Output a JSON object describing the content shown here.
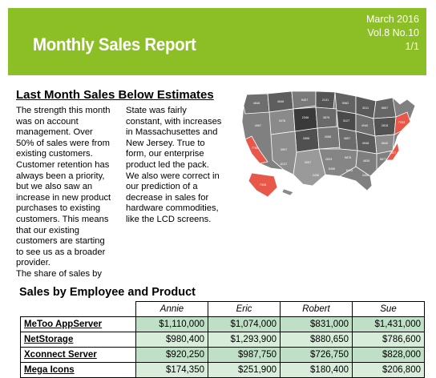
{
  "header": {
    "title": "Monthly Sales Report",
    "date": "March 2016",
    "volume": "Vol.8 No.10",
    "page": "1/1"
  },
  "article": {
    "title": "Last Month Sales Below Estimates",
    "col1_lines": [
      "The strength this month",
      "was on account",
      "management. Over",
      "50% of sales were from",
      "existing customers.",
      "Customer retention has",
      "always been a priority,",
      "but we also saw an",
      "increase in new product",
      "purchases to existing",
      "customers. This means",
      "that our existing",
      "customers are starting",
      "to see us as a broader",
      "provider."
    ],
    "col1_tail": "The share of sales by",
    "col2_lines": [
      "State was fairly",
      "constant, with increases",
      "in Massachusettes and",
      "New Jersey. True to",
      "form, our enterprise",
      "product led the pack.",
      "We also were correct in",
      "our prediction of a",
      "decrease in sales for",
      "hardware commodities,",
      "like the LCD screens."
    ]
  },
  "map": {
    "highlight_color": "#e8584a",
    "state_labels": [
      "4846",
      "4846",
      "5457",
      "2131",
      "5962",
      "3311",
      "5857",
      "3478",
      "2346",
      "3878",
      "3127",
      "4987",
      "4940",
      "2815",
      "2858",
      "4088",
      "7765",
      "3857",
      "7233",
      "3997",
      "4948",
      "5640",
      "3957",
      "7527",
      "2529",
      "5878",
      "4835",
      "6137",
      "5456",
      "6463",
      "7326",
      "3456",
      "8877",
      "2436"
    ]
  },
  "table": {
    "title": "Sales by Employee and Product",
    "columns": [
      "Annie",
      "Eric",
      "Robert",
      "Sue"
    ],
    "rows": [
      {
        "product": "MeToo AppServer",
        "values": [
          "$1,110,000",
          "$1,074,000",
          "$831,000",
          "$1,431,000"
        ]
      },
      {
        "product": "NetStorage",
        "values": [
          "$980,400",
          "$1,293,900",
          "$880,650",
          "$786,600"
        ]
      },
      {
        "product": "Xconnect Server",
        "values": [
          "$920,250",
          "$987,750",
          "$726,750",
          "$828,000"
        ]
      },
      {
        "product": "Mega Icons",
        "values": [
          "$174,350",
          "$251,900",
          "$180,400",
          "$206,800"
        ]
      }
    ]
  }
}
